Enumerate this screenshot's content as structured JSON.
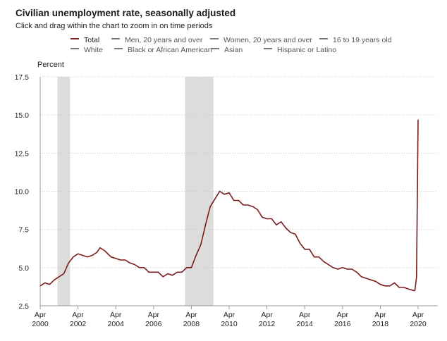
{
  "header": {
    "title": "Civilian unemployment rate, seasonally adjusted",
    "subtitle": "Click and drag within the chart to zoom in on time periods"
  },
  "legend": {
    "items": [
      {
        "label": "Total",
        "active": true
      },
      {
        "label": "Men, 20 years and over",
        "active": false
      },
      {
        "label": "Women, 20 years and over",
        "active": false
      },
      {
        "label": "16 to 19 years old",
        "active": false
      },
      {
        "label": "White",
        "active": false
      },
      {
        "label": "Black or African American",
        "active": false
      },
      {
        "label": "Asian",
        "active": false
      },
      {
        "label": "Hispanic or Latino",
        "active": false
      }
    ]
  },
  "colors": {
    "series": "#7b1c1c",
    "recession": "#dcdcdc",
    "grid": "#c8c8c8"
  },
  "chart_data": {
    "type": "line",
    "title": "Civilian unemployment rate, seasonally adjusted",
    "ylabel": "Percent",
    "xlabel": "",
    "ylim": [
      2.5,
      17.5
    ],
    "yticks": [
      2.5,
      5.0,
      7.5,
      10.0,
      12.5,
      15.0,
      17.5
    ],
    "xlim": [
      "2000-04",
      "2020-04"
    ],
    "xticks": [
      {
        "month": "Apr",
        "year": "2000",
        "date": "2000-04"
      },
      {
        "month": "Apr",
        "year": "2002",
        "date": "2002-04"
      },
      {
        "month": "Apr",
        "year": "2004",
        "date": "2004-04"
      },
      {
        "month": "Apr",
        "year": "2006",
        "date": "2006-04"
      },
      {
        "month": "Apr",
        "year": "2008",
        "date": "2008-04"
      },
      {
        "month": "Apr",
        "year": "2010",
        "date": "2010-04"
      },
      {
        "month": "Apr",
        "year": "2012",
        "date": "2012-04"
      },
      {
        "month": "Apr",
        "year": "2014",
        "date": "2014-04"
      },
      {
        "month": "Apr",
        "year": "2016",
        "date": "2016-04"
      },
      {
        "month": "Apr",
        "year": "2018",
        "date": "2018-04"
      },
      {
        "month": "Apr",
        "year": "2020",
        "date": "2020-04"
      }
    ],
    "grid": true,
    "recessions": [
      {
        "start": "2001-03",
        "end": "2001-11"
      },
      {
        "start": "2007-12",
        "end": "2009-06"
      }
    ],
    "series": [
      {
        "name": "Total",
        "x": [
          "2000-04",
          "2000-07",
          "2000-10",
          "2001-01",
          "2001-04",
          "2001-07",
          "2001-10",
          "2002-01",
          "2002-04",
          "2002-07",
          "2002-10",
          "2003-01",
          "2003-04",
          "2003-06",
          "2003-09",
          "2004-01",
          "2004-04",
          "2004-07",
          "2004-10",
          "2005-01",
          "2005-04",
          "2005-07",
          "2005-10",
          "2006-01",
          "2006-04",
          "2006-07",
          "2006-10",
          "2007-01",
          "2007-04",
          "2007-07",
          "2007-10",
          "2008-01",
          "2008-04",
          "2008-07",
          "2008-10",
          "2009-01",
          "2009-04",
          "2009-07",
          "2009-10",
          "2010-01",
          "2010-04",
          "2010-07",
          "2010-10",
          "2011-01",
          "2011-04",
          "2011-07",
          "2011-10",
          "2012-01",
          "2012-04",
          "2012-07",
          "2012-10",
          "2013-01",
          "2013-04",
          "2013-07",
          "2013-10",
          "2014-01",
          "2014-04",
          "2014-07",
          "2014-10",
          "2015-01",
          "2015-04",
          "2015-07",
          "2015-10",
          "2016-01",
          "2016-04",
          "2016-07",
          "2016-10",
          "2017-01",
          "2017-04",
          "2017-07",
          "2017-10",
          "2018-01",
          "2018-04",
          "2018-07",
          "2018-10",
          "2019-01",
          "2019-04",
          "2019-07",
          "2019-10",
          "2020-01",
          "2020-02",
          "2020-03",
          "2020-04"
        ],
        "values": [
          3.8,
          4.0,
          3.9,
          4.2,
          4.4,
          4.6,
          5.3,
          5.7,
          5.9,
          5.8,
          5.7,
          5.8,
          6.0,
          6.3,
          6.1,
          5.7,
          5.6,
          5.5,
          5.5,
          5.3,
          5.2,
          5.0,
          5.0,
          4.7,
          4.7,
          4.7,
          4.4,
          4.6,
          4.5,
          4.7,
          4.7,
          5.0,
          5.0,
          5.8,
          6.5,
          7.8,
          9.0,
          9.5,
          10.0,
          9.8,
          9.9,
          9.4,
          9.4,
          9.1,
          9.1,
          9.0,
          8.8,
          8.3,
          8.2,
          8.2,
          7.8,
          8.0,
          7.6,
          7.3,
          7.2,
          6.6,
          6.2,
          6.2,
          5.7,
          5.7,
          5.4,
          5.2,
          5.0,
          4.9,
          5.0,
          4.9,
          4.9,
          4.7,
          4.4,
          4.3,
          4.2,
          4.1,
          3.9,
          3.8,
          3.8,
          4.0,
          3.7,
          3.7,
          3.6,
          3.5,
          3.5,
          4.4,
          14.7
        ]
      }
    ]
  }
}
